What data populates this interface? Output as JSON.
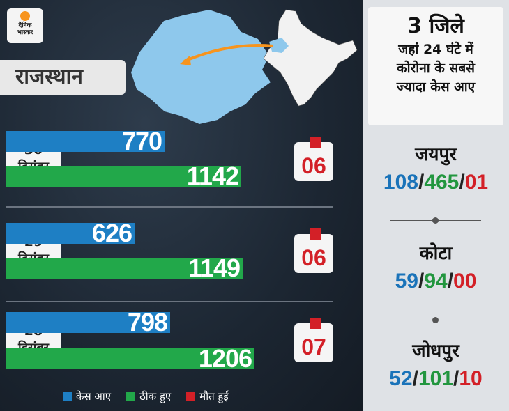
{
  "brand": {
    "logo_text_1": "दैनिक",
    "logo_text_2": "भास्कर"
  },
  "state": "राजस्थान",
  "legend": {
    "cases": "केस आए",
    "recovered": "ठीक हुए",
    "deaths": "मौत हुईं"
  },
  "colors": {
    "cases": "#1e7fc4",
    "recovered": "#22a84a",
    "deaths": "#d32027"
  },
  "chart_data": {
    "type": "bar",
    "categories": [
      "30 दिसंबर",
      "29 दिसंबर",
      "28 दिसंबर"
    ],
    "series": [
      {
        "name": "केस आए",
        "values": [
          770,
          626,
          798
        ]
      },
      {
        "name": "ठीक हुए",
        "values": [
          1142,
          1149,
          1206
        ]
      },
      {
        "name": "मौत हुईं",
        "values": [
          6,
          6,
          7
        ]
      }
    ],
    "labels": {
      "cases": [
        "770",
        "626",
        "798"
      ],
      "recovered": [
        "1142",
        "1149",
        "1206"
      ],
      "deaths": [
        "06",
        "06",
        "07"
      ]
    },
    "dates": [
      {
        "day": "30",
        "month": "दिसंबर"
      },
      {
        "day": "29",
        "month": "दिसंबर"
      },
      {
        "day": "28",
        "month": "दिसंबर"
      }
    ],
    "legend_position": "bottom"
  },
  "side_panel": {
    "title_big": "3 जिले",
    "title_lines": [
      "जहां 24 घंटे में",
      "कोरोना के सबसे",
      "ज्यादा केस आए"
    ],
    "districts": [
      {
        "name": "जयपुर",
        "cases": "108",
        "recovered": "465",
        "deaths": "01"
      },
      {
        "name": "कोटा",
        "cases": "59",
        "recovered": "94",
        "deaths": "00"
      },
      {
        "name": "जोधपुर",
        "cases": "52",
        "recovered": "101",
        "deaths": "10"
      }
    ]
  }
}
